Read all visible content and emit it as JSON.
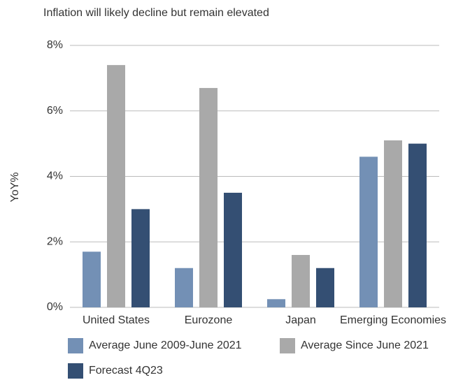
{
  "chart_data": {
    "type": "bar",
    "title": "Inflation will likely decline but remain elevated",
    "y_label": "YoY%",
    "categories": [
      "United States",
      "Eurozone",
      "Japan",
      "Emerging Economies"
    ],
    "series": [
      {
        "name": "Average June 2009-June 2021",
        "color": "#7390b5",
        "values": [
          1.7,
          1.2,
          0.25,
          4.6
        ]
      },
      {
        "name": "Average Since June 2021",
        "color": "#a9a9a9",
        "values": [
          7.4,
          6.7,
          1.6,
          5.1
        ]
      },
      {
        "name": "Forecast 4Q23",
        "color": "#344f73",
        "values": [
          3.0,
          3.5,
          1.2,
          5.0
        ]
      }
    ],
    "ylim": [
      0,
      8
    ],
    "yticks": [
      {
        "value": 0,
        "label": "0%"
      },
      {
        "value": 2,
        "label": "2%"
      },
      {
        "value": 4,
        "label": "4%"
      },
      {
        "value": 6,
        "label": "6%"
      },
      {
        "value": 8,
        "label": "8%"
      }
    ],
    "grid": true,
    "legend": "bottom"
  }
}
